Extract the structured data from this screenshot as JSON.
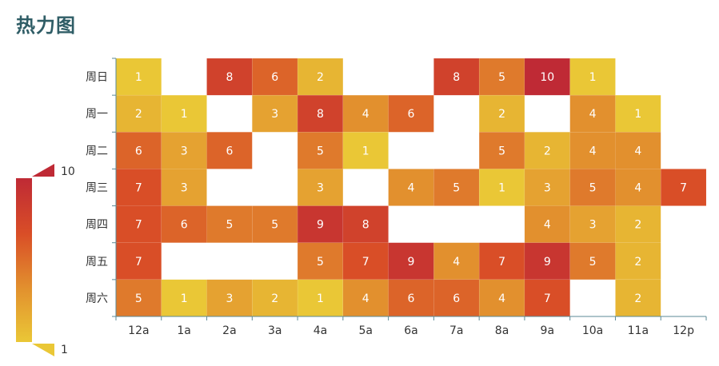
{
  "title": "热力图",
  "chart_data": {
    "type": "heatmap",
    "title": "热力图",
    "x_categories": [
      "12a",
      "1a",
      "2a",
      "3a",
      "4a",
      "5a",
      "6a",
      "7a",
      "8a",
      "9a",
      "10a",
      "11a",
      "12p"
    ],
    "y_categories": [
      "周日",
      "周一",
      "周二",
      "周三",
      "周四",
      "周五",
      "周六"
    ],
    "values": [
      [
        1,
        null,
        8,
        6,
        2,
        null,
        null,
        8,
        5,
        10,
        1,
        null,
        null
      ],
      [
        2,
        1,
        null,
        3,
        8,
        4,
        6,
        null,
        2,
        null,
        4,
        1,
        null
      ],
      [
        6,
        3,
        6,
        null,
        5,
        1,
        null,
        null,
        5,
        2,
        4,
        4,
        null
      ],
      [
        7,
        3,
        null,
        null,
        3,
        null,
        4,
        5,
        1,
        3,
        5,
        4,
        7
      ],
      [
        7,
        6,
        5,
        5,
        9,
        8,
        null,
        null,
        null,
        4,
        3,
        2,
        null
      ],
      [
        7,
        null,
        null,
        null,
        5,
        7,
        9,
        4,
        7,
        9,
        5,
        2,
        null
      ],
      [
        5,
        1,
        3,
        2,
        1,
        4,
        6,
        6,
        4,
        7,
        null,
        2,
        null
      ]
    ],
    "visual_map": {
      "min": 1,
      "max": 10,
      "min_label": "1",
      "max_label": "10",
      "colors": [
        "#eac736",
        "#e2902e",
        "#d94e27",
        "#bf2a35"
      ]
    },
    "axis_color": "#5b8a96"
  }
}
